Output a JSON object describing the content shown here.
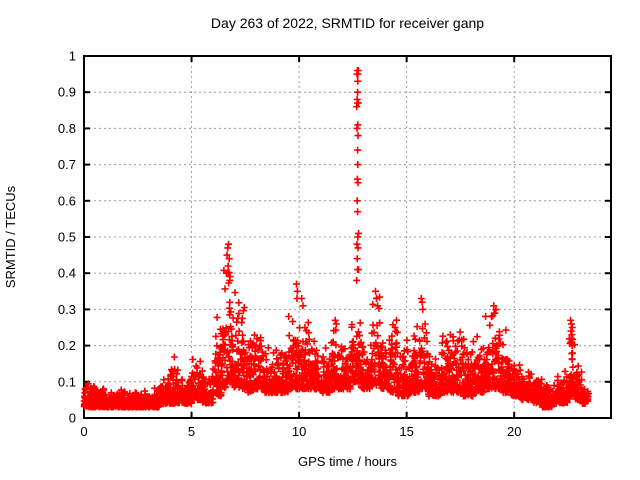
{
  "window": {
    "background_color": "#ffffff"
  },
  "chart_data": {
    "type": "scatter",
    "title": "Day 263 of 2022, SRMTID for receiver ganp",
    "xlabel": "GPS time / hours",
    "ylabel": "SRMTID / TECUs",
    "xlim": [
      0,
      24.5
    ],
    "ylim": [
      0,
      1
    ],
    "xticks": [
      {
        "v": 0,
        "label": "0"
      },
      {
        "v": 5,
        "label": "5"
      },
      {
        "v": 10,
        "label": "10"
      },
      {
        "v": 15,
        "label": "15"
      },
      {
        "v": 20,
        "label": "20"
      }
    ],
    "yticks": [
      {
        "v": 0.0,
        "label": "0"
      },
      {
        "v": 0.1,
        "label": "0.1"
      },
      {
        "v": 0.2,
        "label": "0.2"
      },
      {
        "v": 0.3,
        "label": "0.3"
      },
      {
        "v": 0.4,
        "label": "0.4"
      },
      {
        "v": 0.5,
        "label": "0.5"
      },
      {
        "v": 0.6,
        "label": "0.6"
      },
      {
        "v": 0.7,
        "label": "0.7"
      },
      {
        "v": 0.8,
        "label": "0.8"
      },
      {
        "v": 0.9,
        "label": "0.9"
      },
      {
        "v": 1.0,
        "label": "1"
      }
    ],
    "grid": true,
    "legend": null,
    "series_name": "SRMTID",
    "marker": {
      "shape": "plus",
      "color": "#ff0000",
      "size": 7,
      "stroke_width": 1.6
    },
    "colors": {
      "frame": "#000000",
      "grid": "#9c9c9c",
      "text": "#000000",
      "data": "#ff0000"
    },
    "envelope_bins": [
      [
        0.0,
        0.5,
        0.03,
        0.1
      ],
      [
        0.5,
        1.0,
        0.03,
        0.09
      ],
      [
        1.0,
        1.5,
        0.03,
        0.08
      ],
      [
        1.5,
        2.0,
        0.03,
        0.08
      ],
      [
        2.0,
        2.5,
        0.03,
        0.08
      ],
      [
        2.5,
        3.0,
        0.03,
        0.08
      ],
      [
        3.0,
        3.5,
        0.03,
        0.09
      ],
      [
        3.5,
        4.0,
        0.04,
        0.12
      ],
      [
        4.0,
        4.5,
        0.04,
        0.17
      ],
      [
        4.5,
        5.0,
        0.04,
        0.12
      ],
      [
        5.0,
        5.5,
        0.05,
        0.18
      ],
      [
        5.5,
        6.0,
        0.04,
        0.13
      ],
      [
        6.0,
        6.4,
        0.06,
        0.31
      ],
      [
        6.4,
        6.6,
        0.08,
        0.44
      ],
      [
        6.6,
        6.9,
        0.1,
        0.48
      ],
      [
        6.9,
        7.2,
        0.08,
        0.4
      ],
      [
        7.2,
        7.5,
        0.08,
        0.33
      ],
      [
        7.5,
        7.9,
        0.07,
        0.3
      ],
      [
        7.9,
        8.4,
        0.08,
        0.26
      ],
      [
        8.4,
        9.0,
        0.07,
        0.2
      ],
      [
        9.0,
        9.5,
        0.07,
        0.22
      ],
      [
        9.5,
        9.8,
        0.08,
        0.3
      ],
      [
        9.8,
        10.1,
        0.08,
        0.37
      ],
      [
        10.1,
        10.5,
        0.08,
        0.33
      ],
      [
        10.5,
        11.0,
        0.08,
        0.22
      ],
      [
        11.0,
        11.5,
        0.07,
        0.2
      ],
      [
        11.5,
        12.0,
        0.08,
        0.27
      ],
      [
        12.0,
        12.4,
        0.08,
        0.22
      ],
      [
        12.4,
        12.9,
        0.1,
        0.33
      ],
      [
        12.9,
        13.3,
        0.08,
        0.22
      ],
      [
        13.3,
        13.8,
        0.09,
        0.35
      ],
      [
        13.8,
        14.2,
        0.08,
        0.25
      ],
      [
        14.2,
        14.6,
        0.07,
        0.3
      ],
      [
        14.6,
        15.2,
        0.06,
        0.22
      ],
      [
        15.2,
        15.6,
        0.07,
        0.26
      ],
      [
        15.6,
        16.0,
        0.08,
        0.33
      ],
      [
        16.0,
        16.6,
        0.06,
        0.2
      ],
      [
        16.6,
        17.1,
        0.07,
        0.24
      ],
      [
        17.1,
        17.6,
        0.07,
        0.27
      ],
      [
        17.6,
        18.1,
        0.06,
        0.23
      ],
      [
        18.1,
        18.6,
        0.07,
        0.24
      ],
      [
        18.6,
        19.0,
        0.08,
        0.29
      ],
      [
        19.0,
        19.4,
        0.08,
        0.31
      ],
      [
        19.4,
        19.8,
        0.07,
        0.25
      ],
      [
        19.8,
        20.3,
        0.06,
        0.18
      ],
      [
        20.3,
        20.8,
        0.05,
        0.14
      ],
      [
        20.8,
        21.3,
        0.04,
        0.12
      ],
      [
        21.3,
        21.8,
        0.03,
        0.1
      ],
      [
        21.8,
        22.3,
        0.04,
        0.12
      ],
      [
        22.3,
        22.55,
        0.04,
        0.14
      ],
      [
        22.55,
        22.85,
        0.06,
        0.28
      ],
      [
        22.85,
        23.15,
        0.05,
        0.15
      ],
      [
        23.15,
        23.45,
        0.04,
        0.1
      ]
    ],
    "peak_points": [
      [
        12.68,
        0.38
      ],
      [
        12.72,
        0.41
      ],
      [
        12.76,
        0.41
      ],
      [
        12.7,
        0.44
      ],
      [
        12.74,
        0.47
      ],
      [
        12.69,
        0.48
      ],
      [
        12.73,
        0.5
      ],
      [
        12.76,
        0.51
      ],
      [
        12.72,
        0.57
      ],
      [
        12.7,
        0.6
      ],
      [
        12.74,
        0.65
      ],
      [
        12.71,
        0.66
      ],
      [
        12.73,
        0.7
      ],
      [
        12.72,
        0.74
      ],
      [
        12.74,
        0.78
      ],
      [
        12.69,
        0.8
      ],
      [
        12.73,
        0.81
      ],
      [
        12.68,
        0.86
      ],
      [
        12.72,
        0.87
      ],
      [
        12.75,
        0.87
      ],
      [
        12.7,
        0.88
      ],
      [
        12.72,
        0.9
      ],
      [
        12.73,
        0.93
      ],
      [
        12.69,
        0.95
      ],
      [
        12.73,
        0.95
      ],
      [
        12.75,
        0.96
      ],
      [
        12.71,
        0.96
      ],
      [
        6.68,
        0.47
      ],
      [
        6.72,
        0.48
      ],
      [
        6.65,
        0.45
      ],
      [
        6.75,
        0.44
      ],
      [
        6.7,
        0.42
      ],
      [
        6.62,
        0.4
      ],
      [
        6.78,
        0.38
      ],
      [
        9.88,
        0.37
      ],
      [
        9.92,
        0.35
      ],
      [
        9.9,
        0.33
      ],
      [
        10.12,
        0.33
      ],
      [
        10.18,
        0.31
      ],
      [
        11.68,
        0.27
      ],
      [
        11.73,
        0.26
      ],
      [
        13.55,
        0.35
      ],
      [
        13.6,
        0.33
      ],
      [
        13.65,
        0.31
      ],
      [
        15.68,
        0.33
      ],
      [
        15.72,
        0.32
      ],
      [
        15.75,
        0.3
      ],
      [
        18.95,
        0.28
      ],
      [
        19.05,
        0.31
      ],
      [
        19.1,
        0.29
      ],
      [
        19.15,
        0.3
      ],
      [
        22.62,
        0.27
      ],
      [
        22.66,
        0.26
      ],
      [
        22.7,
        0.25
      ],
      [
        22.64,
        0.24
      ],
      [
        22.68,
        0.23
      ],
      [
        22.66,
        0.22
      ],
      [
        22.63,
        0.21
      ],
      [
        22.69,
        0.2
      ]
    ],
    "generation": {
      "seed": 20220263,
      "points_per_hour": 140
    }
  }
}
